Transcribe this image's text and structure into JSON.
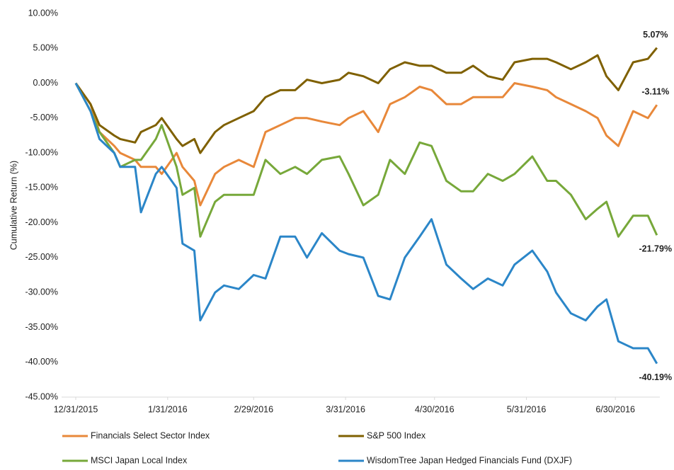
{
  "chart_data": {
    "type": "line",
    "y_label": "Cumulative Return (%)",
    "x": [
      "2015-12-31",
      "2016-01-05",
      "2016-01-08",
      "2016-01-13",
      "2016-01-15",
      "2016-01-20",
      "2016-01-22",
      "2016-01-27",
      "2016-01-29",
      "2016-02-03",
      "2016-02-05",
      "2016-02-09",
      "2016-02-11",
      "2016-02-16",
      "2016-02-19",
      "2016-02-24",
      "2016-02-29",
      "2016-03-04",
      "2016-03-09",
      "2016-03-14",
      "2016-03-18",
      "2016-03-23",
      "2016-03-29",
      "2016-04-01",
      "2016-04-06",
      "2016-04-11",
      "2016-04-15",
      "2016-04-20",
      "2016-04-25",
      "2016-04-29",
      "2016-05-04",
      "2016-05-09",
      "2016-05-13",
      "2016-05-18",
      "2016-05-23",
      "2016-05-27",
      "2016-06-02",
      "2016-06-07",
      "2016-06-10",
      "2016-06-15",
      "2016-06-20",
      "2016-06-24",
      "2016-06-27",
      "2016-07-01",
      "2016-07-06",
      "2016-07-11",
      "2016-07-14"
    ],
    "xlim": [
      "2015-12-31",
      "2016-07-15"
    ],
    "xticks": [
      {
        "value": "2015-12-31",
        "label": "12/31/2015"
      },
      {
        "value": "2016-01-31",
        "label": "1/31/2016"
      },
      {
        "value": "2016-02-29",
        "label": "2/29/2016"
      },
      {
        "value": "2016-03-31",
        "label": "3/31/2016"
      },
      {
        "value": "2016-04-30",
        "label": "4/30/2016"
      },
      {
        "value": "2016-05-31",
        "label": "5/31/2016"
      },
      {
        "value": "2016-06-30",
        "label": "6/30/2016"
      }
    ],
    "ylim": [
      -45,
      10
    ],
    "yticks": [
      {
        "value": 10,
        "label": "10.00%"
      },
      {
        "value": 5,
        "label": "5.00%"
      },
      {
        "value": 0,
        "label": "0.00%"
      },
      {
        "value": -5,
        "label": "-5.00%"
      },
      {
        "value": -10,
        "label": "-10.00%"
      },
      {
        "value": -15,
        "label": "-15.00%"
      },
      {
        "value": -20,
        "label": "-20.00%"
      },
      {
        "value": -25,
        "label": "-25.00%"
      },
      {
        "value": -30,
        "label": "-30.00%"
      },
      {
        "value": -35,
        "label": "-35.00%"
      },
      {
        "value": -40,
        "label": "-40.00%"
      },
      {
        "value": -45,
        "label": "-45.00%"
      }
    ],
    "grid": false,
    "series": [
      {
        "name": "Financials Select Sector Index",
        "color": "#e8883a",
        "end_label": "-3.11%",
        "values": [
          0,
          -3,
          -7,
          -9,
          -10,
          -11,
          -12,
          -12,
          -13,
          -10,
          -12,
          -14,
          -17.5,
          -13,
          -12,
          -11,
          -12,
          -7,
          -6,
          -5,
          -5,
          -5.5,
          -6,
          -5,
          -4,
          -7,
          -3,
          -2,
          -0.5,
          -1,
          -3,
          -3,
          -2,
          -2,
          -2,
          0,
          -0.5,
          -1,
          -2,
          -3,
          -4,
          -5,
          -7.5,
          -9,
          -4,
          -5,
          -3.11
        ]
      },
      {
        "name": "S&P 500 Index",
        "color": "#7f6000",
        "end_label": "5.07%",
        "values": [
          0,
          -3,
          -6,
          -7.5,
          -8,
          -8.5,
          -7,
          -6,
          -5,
          -8,
          -9,
          -8,
          -10,
          -7,
          -6,
          -5,
          -4,
          -2,
          -1,
          -1,
          0.5,
          0,
          0.5,
          1.5,
          1,
          0,
          2,
          3,
          2.5,
          2.5,
          1.5,
          1.5,
          2.5,
          1,
          0.5,
          3,
          3.5,
          3.5,
          3,
          2,
          3,
          4,
          1,
          -1,
          3,
          3.5,
          5.07
        ]
      },
      {
        "name": "MSCI Japan Local Index",
        "color": "#77a83a",
        "end_label": "-21.79%",
        "values": [
          0,
          -4,
          -7,
          -10,
          -12,
          -11,
          -11,
          -8,
          -6,
          -12,
          -16,
          -15,
          -22,
          -17,
          -16,
          -16,
          -16,
          -11,
          -13,
          -12,
          -13,
          -11,
          -10.5,
          -13,
          -17.5,
          -16,
          -11,
          -13,
          -8.5,
          -9,
          -14,
          -15.5,
          -15.5,
          -13,
          -14,
          -13,
          -10.5,
          -14,
          -14,
          -16,
          -19.5,
          -18,
          -17,
          -22,
          -19,
          -19,
          -21.79
        ]
      },
      {
        "name": "WisdomTree Japan Hedged Financials Fund (DXJF)",
        "color": "#2b86c8",
        "end_label": "-40.19%",
        "values": [
          0,
          -4,
          -8,
          -10,
          -12,
          -12,
          -18.5,
          -13,
          -12,
          -15,
          -23,
          -24,
          -34,
          -30,
          -29,
          -29.5,
          -27.5,
          -28,
          -22,
          -22,
          -25,
          -21.5,
          -24,
          -24.5,
          -25,
          -30.5,
          -31,
          -25,
          -22,
          -19.5,
          -26,
          -28,
          -29.5,
          -28,
          -29,
          -26,
          -24,
          -27,
          -30,
          -33,
          -34,
          -32,
          -31,
          -37,
          -38,
          -38,
          -40.19
        ]
      }
    ]
  }
}
